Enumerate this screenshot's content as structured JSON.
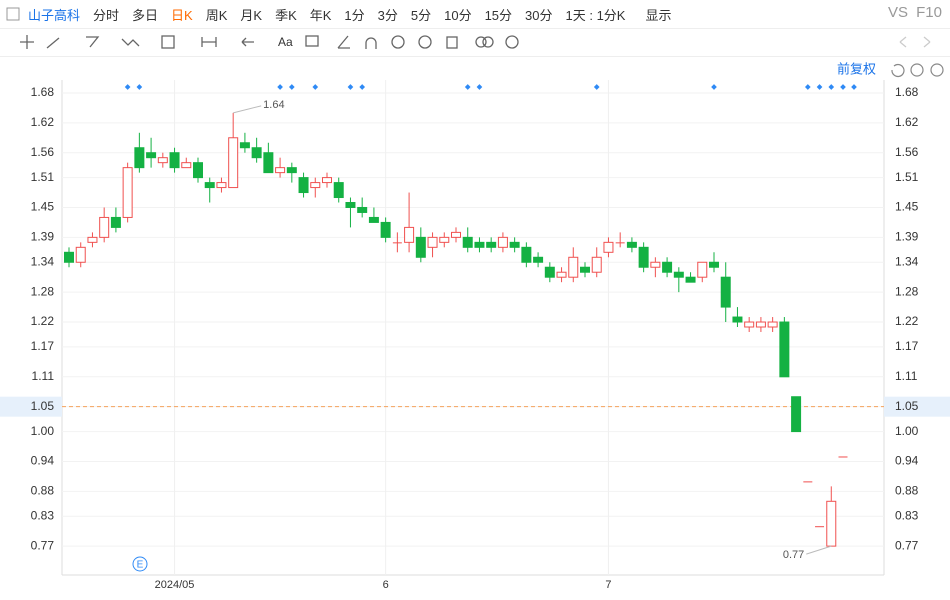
{
  "toolbar": {
    "stock": "山子高科",
    "periods": [
      "分时",
      "多日",
      "日K",
      "周K",
      "月K",
      "季K",
      "年K",
      "1分",
      "3分",
      "5分",
      "10分",
      "15分",
      "30分"
    ],
    "active": "日K",
    "interval": "1天 : 1分K",
    "display": "显示",
    "vs": "VS",
    "f10": "F10"
  },
  "chart_data": {
    "type": "candlestick",
    "adjust": "前复权",
    "categories": [
      null,
      null,
      null,
      null,
      null,
      null,
      null,
      null,
      null,
      "2024/05",
      null,
      null,
      null,
      null,
      null,
      null,
      null,
      null,
      null,
      null,
      null,
      null,
      null,
      null,
      null,
      null,
      null,
      "6",
      null,
      null,
      null,
      null,
      null,
      null,
      null,
      null,
      null,
      null,
      null,
      null,
      null,
      null,
      null,
      null,
      null,
      null,
      "7",
      null,
      null,
      null,
      null,
      null,
      null,
      null,
      null,
      null,
      null,
      null,
      null,
      null,
      null,
      null,
      null,
      null,
      null,
      null,
      null
    ],
    "series": [
      {
        "name": "open",
        "values": [
          1.36,
          1.34,
          1.38,
          1.39,
          1.43,
          1.43,
          1.57,
          1.56,
          1.54,
          1.56,
          1.53,
          1.54,
          1.5,
          1.49,
          1.49,
          1.58,
          1.57,
          1.56,
          1.52,
          1.53,
          1.51,
          1.49,
          1.5,
          1.5,
          1.46,
          1.45,
          1.43,
          1.42,
          1.38,
          1.38,
          1.39,
          1.37,
          1.38,
          1.39,
          1.39,
          1.38,
          1.38,
          1.37,
          1.38,
          1.37,
          1.35,
          1.33,
          1.31,
          1.31,
          1.33,
          1.32,
          1.36,
          1.38,
          1.38,
          1.37,
          1.33,
          1.34,
          1.32,
          1.31,
          1.31,
          1.34,
          1.31,
          1.23,
          1.21,
          1.21,
          1.21,
          1.22,
          1.07,
          0.9,
          0.81,
          0.77,
          0.95
        ]
      },
      {
        "name": "high",
        "values": [
          1.37,
          1.38,
          1.4,
          1.45,
          1.45,
          1.54,
          1.6,
          1.59,
          1.56,
          1.57,
          1.55,
          1.55,
          1.51,
          1.51,
          1.64,
          1.6,
          1.59,
          1.58,
          1.55,
          1.54,
          1.52,
          1.51,
          1.52,
          1.51,
          1.47,
          1.47,
          1.45,
          1.43,
          1.4,
          1.48,
          1.41,
          1.4,
          1.4,
          1.41,
          1.41,
          1.39,
          1.39,
          1.4,
          1.39,
          1.38,
          1.36,
          1.34,
          1.33,
          1.37,
          1.34,
          1.37,
          1.39,
          1.4,
          1.39,
          1.38,
          1.35,
          1.35,
          1.33,
          1.32,
          1.32,
          1.36,
          1.34,
          1.25,
          1.23,
          1.23,
          1.23,
          1.23,
          1.07,
          0.9,
          0.81,
          0.89,
          0.95
        ]
      },
      {
        "name": "low",
        "values": [
          1.33,
          1.33,
          1.37,
          1.38,
          1.4,
          1.42,
          1.52,
          1.53,
          1.53,
          1.52,
          1.53,
          1.5,
          1.46,
          1.48,
          1.49,
          1.56,
          1.54,
          1.52,
          1.51,
          1.5,
          1.47,
          1.47,
          1.49,
          1.46,
          1.41,
          1.43,
          1.42,
          1.38,
          1.36,
          1.36,
          1.34,
          1.35,
          1.37,
          1.38,
          1.36,
          1.36,
          1.36,
          1.36,
          1.36,
          1.33,
          1.33,
          1.3,
          1.3,
          1.3,
          1.31,
          1.31,
          1.35,
          1.37,
          1.36,
          1.32,
          1.31,
          1.31,
          1.28,
          1.3,
          1.3,
          1.32,
          1.22,
          1.21,
          1.2,
          1.2,
          1.2,
          1.11,
          1.0,
          0.9,
          0.81,
          0.77,
          0.95
        ]
      },
      {
        "name": "close",
        "values": [
          1.34,
          1.37,
          1.39,
          1.43,
          1.41,
          1.53,
          1.53,
          1.55,
          1.55,
          1.53,
          1.54,
          1.51,
          1.49,
          1.5,
          1.59,
          1.57,
          1.55,
          1.52,
          1.53,
          1.52,
          1.48,
          1.5,
          1.51,
          1.47,
          1.45,
          1.44,
          1.42,
          1.39,
          1.38,
          1.41,
          1.35,
          1.39,
          1.39,
          1.4,
          1.37,
          1.37,
          1.37,
          1.39,
          1.37,
          1.34,
          1.34,
          1.31,
          1.32,
          1.35,
          1.32,
          1.35,
          1.38,
          1.38,
          1.37,
          1.33,
          1.34,
          1.32,
          1.31,
          1.3,
          1.34,
          1.33,
          1.25,
          1.22,
          1.22,
          1.22,
          1.22,
          1.11,
          1.0,
          0.9,
          0.81,
          0.86,
          0.95
        ]
      }
    ],
    "up_color": "#f0504f",
    "down_color": "#14b143",
    "ylim": [
      0.712,
      1.706
    ],
    "yticks": [
      1.68,
      1.62,
      1.56,
      1.51,
      1.45,
      1.39,
      1.34,
      1.28,
      1.22,
      1.17,
      1.11,
      1.05,
      {
        "value": 1,
        "label": "1.00"
      },
      0.94,
      0.88,
      0.83,
      0.77
    ],
    "current_price": 1.05,
    "max_label": 1.64,
    "min_label": 0.77,
    "event_marker": "E",
    "grid": true
  }
}
